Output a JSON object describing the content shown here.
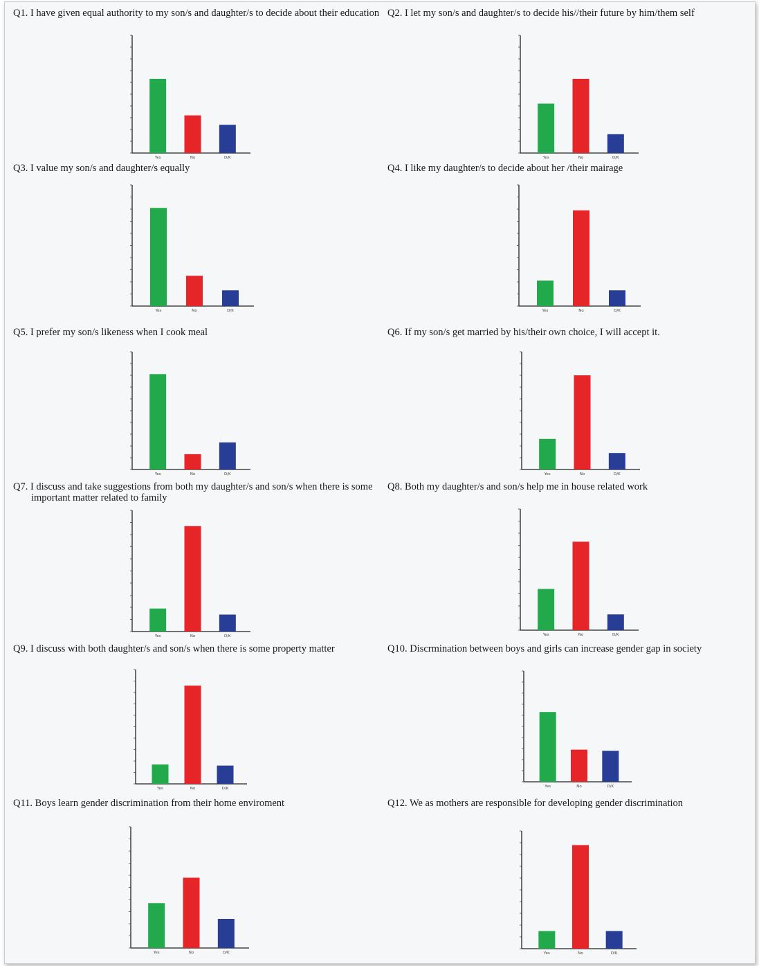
{
  "colors": {
    "yes": "#22a94b",
    "no": "#e52528",
    "dont_know": "#283d96"
  },
  "chart_data": [
    {
      "id": "q1",
      "type": "bar",
      "title": "Q1. I have given equal authority to my son/s and daughter/s to decide about their education",
      "categories": [
        "Yes",
        "No",
        "D/K"
      ],
      "values": [
        63,
        32,
        24
      ],
      "ylim": [
        0,
        100
      ],
      "grid": false
    },
    {
      "id": "q2",
      "type": "bar",
      "title": "Q2. I let my son/s and daughter/s to decide his//their future by him/them self",
      "categories": [
        "Yes",
        "No",
        "D/K"
      ],
      "values": [
        42,
        63,
        16
      ],
      "ylim": [
        0,
        100
      ],
      "grid": false
    },
    {
      "id": "q3",
      "type": "bar",
      "title": "Q3. I value my son/s and daughter/s equally",
      "categories": [
        "Yes",
        "No",
        "D/K"
      ],
      "values": [
        81,
        25,
        13
      ],
      "ylim": [
        0,
        100
      ],
      "grid": false
    },
    {
      "id": "q4",
      "type": "bar",
      "title": "Q4. I like my daughter/s to decide about her /their mairage",
      "categories": [
        "Yes",
        "No",
        "D/K"
      ],
      "values": [
        21,
        79,
        13
      ],
      "ylim": [
        0,
        100
      ],
      "grid": false
    },
    {
      "id": "q5",
      "type": "bar",
      "title": "Q5. I prefer my son/s likeness when I cook meal",
      "categories": [
        "Yes",
        "No",
        "D/K"
      ],
      "values": [
        81,
        13,
        23
      ],
      "ylim": [
        0,
        100
      ],
      "grid": false
    },
    {
      "id": "q6",
      "type": "bar",
      "title": "Q6. If my son/s get married by his/their own choice, I will accept it.",
      "categories": [
        "Yes",
        "No",
        "D/K"
      ],
      "values": [
        26,
        80,
        14
      ],
      "ylim": [
        0,
        100
      ],
      "grid": false
    },
    {
      "id": "q7",
      "type": "bar",
      "title": "Q7. I discuss and take suggestions from both my daughter/s and son/s when there is some important matter related to family",
      "categories": [
        "Yes",
        "No",
        "D/K"
      ],
      "values": [
        19,
        87,
        14
      ],
      "ylim": [
        0,
        100
      ],
      "grid": false
    },
    {
      "id": "q8",
      "type": "bar",
      "title": "Q8. Both my daughter/s and son/s help me in house related work",
      "categories": [
        "Yes",
        "No",
        "D/K"
      ],
      "values": [
        34,
        73,
        13
      ],
      "ylim": [
        0,
        100
      ],
      "grid": false
    },
    {
      "id": "q9",
      "type": "bar",
      "title": "Q9. I discuss with both daughter/s and son/s when there is some property matter",
      "categories": [
        "Yes",
        "No",
        "D/K"
      ],
      "values": [
        17,
        86,
        16
      ],
      "ylim": [
        0,
        100
      ],
      "grid": false
    },
    {
      "id": "q10",
      "type": "bar",
      "title": "Q10. Discrmination between boys and girls can increase gender gap in society",
      "categories": [
        "Yes",
        "No",
        "D/K"
      ],
      "values": [
        63,
        29,
        28
      ],
      "ylim": [
        0,
        100
      ],
      "grid": false
    },
    {
      "id": "q11",
      "type": "bar",
      "title": "Q11.  Boys learn gender discrimination from their home enviroment",
      "categories": [
        "Yes",
        "No",
        "D/K"
      ],
      "values": [
        37,
        58,
        24
      ],
      "ylim": [
        0,
        100
      ],
      "grid": false
    },
    {
      "id": "q12",
      "type": "bar",
      "title": "Q12. We as mothers are responsible for developing gender discrimination",
      "categories": [
        "Yes",
        "No",
        "D/K"
      ],
      "values": [
        15,
        88,
        15
      ],
      "ylim": [
        0,
        100
      ],
      "grid": false
    }
  ]
}
